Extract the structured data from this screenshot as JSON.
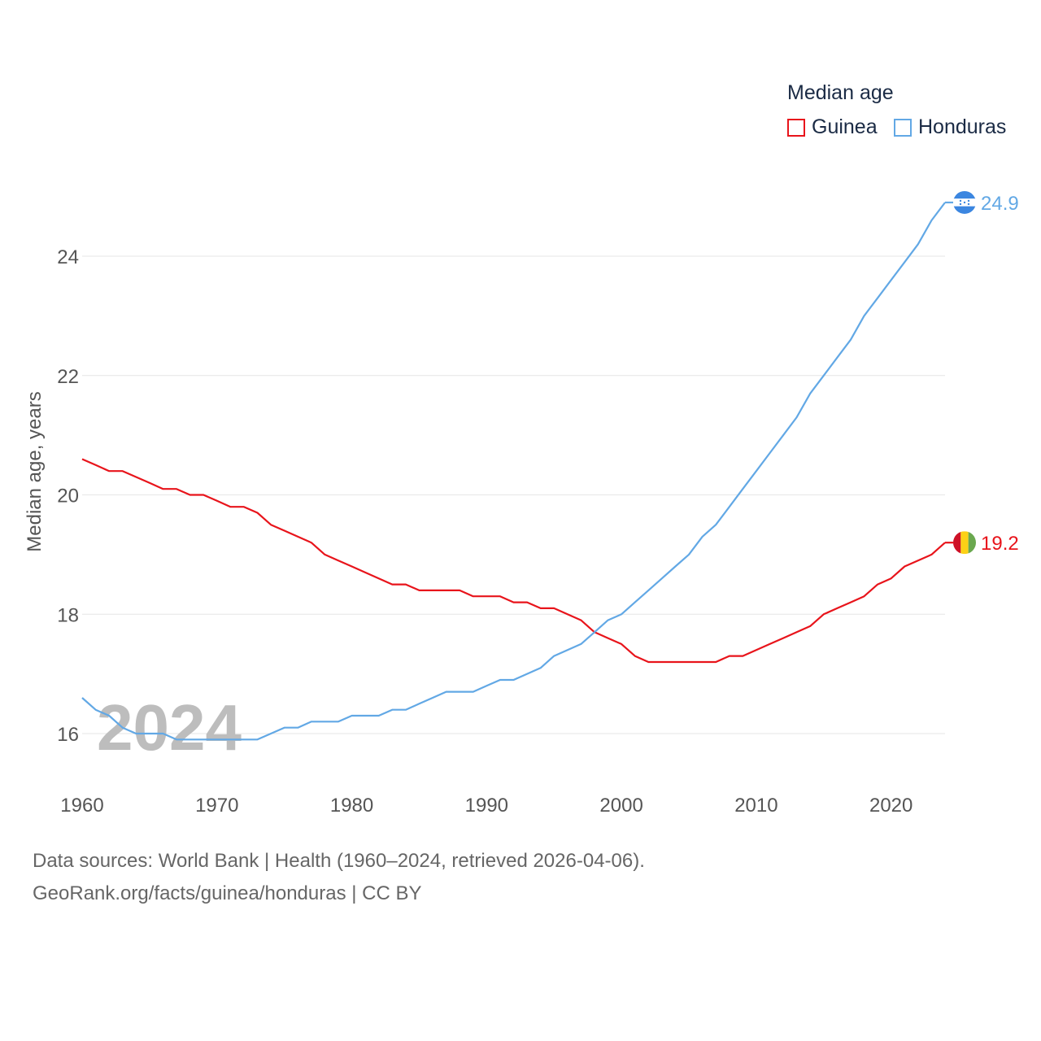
{
  "chart_data": {
    "type": "line",
    "ylabel": "Median age, years",
    "xlabel": "",
    "xlim": [
      1960,
      2024
    ],
    "ylim": [
      15,
      25
    ],
    "yticks": [
      16,
      18,
      20,
      22,
      24
    ],
    "xticks": [
      1960,
      1970,
      1980,
      1990,
      2000,
      2010,
      2020
    ],
    "year_watermark": "2024",
    "legend": {
      "title": "Median age",
      "position": "top-right"
    },
    "x": [
      1960,
      1961,
      1962,
      1963,
      1964,
      1965,
      1966,
      1967,
      1968,
      1969,
      1970,
      1971,
      1972,
      1973,
      1974,
      1975,
      1976,
      1977,
      1978,
      1979,
      1980,
      1981,
      1982,
      1983,
      1984,
      1985,
      1986,
      1987,
      1988,
      1989,
      1990,
      1991,
      1992,
      1993,
      1994,
      1995,
      1996,
      1997,
      1998,
      1999,
      2000,
      2001,
      2002,
      2003,
      2004,
      2005,
      2006,
      2007,
      2008,
      2009,
      2010,
      2011,
      2012,
      2013,
      2014,
      2015,
      2016,
      2017,
      2018,
      2019,
      2020,
      2021,
      2022,
      2023,
      2024
    ],
    "series": [
      {
        "name": "Guinea",
        "color": "#e8141b",
        "end_label": "19.2",
        "flag": "guinea-flag",
        "values": [
          20.6,
          20.5,
          20.4,
          20.4,
          20.3,
          20.2,
          20.1,
          20.1,
          20.0,
          20.0,
          19.9,
          19.8,
          19.8,
          19.7,
          19.5,
          19.4,
          19.3,
          19.2,
          19.0,
          18.9,
          18.8,
          18.7,
          18.6,
          18.5,
          18.5,
          18.4,
          18.4,
          18.4,
          18.4,
          18.3,
          18.3,
          18.3,
          18.2,
          18.2,
          18.1,
          18.1,
          18.0,
          17.9,
          17.7,
          17.6,
          17.5,
          17.3,
          17.2,
          17.2,
          17.2,
          17.2,
          17.2,
          17.2,
          17.3,
          17.3,
          17.4,
          17.5,
          17.6,
          17.7,
          17.8,
          18.0,
          18.1,
          18.2,
          18.3,
          18.5,
          18.6,
          18.8,
          18.9,
          19.0,
          19.2
        ]
      },
      {
        "name": "Honduras",
        "color": "#62a8e5",
        "end_label": "24.9",
        "flag": "honduras-flag",
        "values": [
          16.6,
          16.4,
          16.3,
          16.1,
          16.0,
          16.0,
          16.0,
          15.9,
          15.9,
          15.9,
          15.9,
          15.9,
          15.9,
          15.9,
          16.0,
          16.1,
          16.1,
          16.2,
          16.2,
          16.2,
          16.3,
          16.3,
          16.3,
          16.4,
          16.4,
          16.5,
          16.6,
          16.7,
          16.7,
          16.7,
          16.8,
          16.9,
          16.9,
          17.0,
          17.1,
          17.3,
          17.4,
          17.5,
          17.7,
          17.9,
          18.0,
          18.2,
          18.4,
          18.6,
          18.8,
          19.0,
          19.3,
          19.5,
          19.8,
          20.1,
          20.4,
          20.7,
          21.0,
          21.3,
          21.7,
          22.0,
          22.3,
          22.6,
          23.0,
          23.3,
          23.6,
          23.9,
          24.2,
          24.6,
          24.9
        ]
      }
    ]
  },
  "footer": {
    "sources": "Data sources: World Bank | Health (1960–2024, retrieved 2026-04-06).",
    "credit": "GeoRank.org/facts/guinea/honduras | CC BY"
  }
}
